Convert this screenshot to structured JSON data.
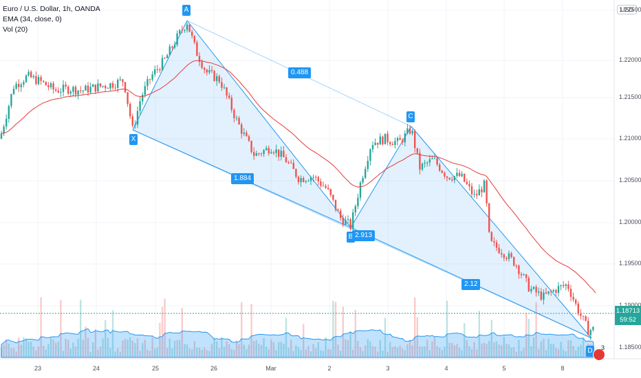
{
  "legend": {
    "symbol": "Euro / U.S. Dollar, 1h, OANDA",
    "ema": "EMA (34, close, 0)",
    "vol": "Vol (20)"
  },
  "currency": "USD",
  "price_tag": {
    "price": "1.18713",
    "countdown": "59:52"
  },
  "pattern": {
    "points": {
      "X": "X",
      "A": "A",
      "B": "B",
      "C": "C",
      "D": "D"
    },
    "ratios": {
      "xa_ab": "1.884",
      "ab_bc": "0.488",
      "xb": "2.913",
      "bc_cd": "2.12"
    }
  },
  "events": {
    "count": "3",
    "flag": "flag-icon"
  },
  "colors": {
    "up": "#26a69a",
    "down": "#ef5350",
    "ema": "#e53935",
    "pattern": "#2196f3",
    "volume_ma": "#2196f3"
  },
  "chart_data": {
    "type": "line",
    "title": "Euro / U.S. Dollar, 1h, OANDA",
    "y_ticks": [
      "1.22500",
      "1.22000",
      "1.21500",
      "1.21000",
      "1.20500",
      "1.20000",
      "1.19500",
      "1.19000",
      "1.18500"
    ],
    "x_ticks": [
      "23",
      "24",
      "25",
      "26",
      "Mar",
      "2",
      "3",
      "4",
      "5",
      "8"
    ],
    "ylim": [
      1.1835,
      1.2255
    ],
    "pattern_points": [
      {
        "name": "X",
        "price": 1.211
      },
      {
        "name": "A",
        "price": 1.2243
      },
      {
        "name": "B",
        "price": 1.1992
      },
      {
        "name": "C",
        "price": 1.2115
      },
      {
        "name": "D",
        "price": 1.186
      }
    ],
    "last_price": 1.18713
  }
}
